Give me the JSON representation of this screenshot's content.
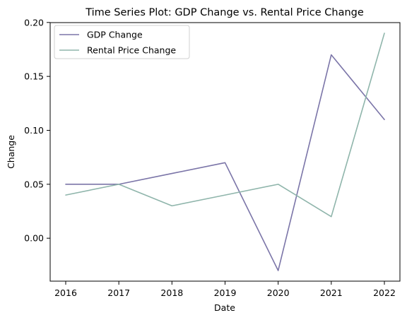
{
  "chart_data": {
    "type": "line",
    "title": "Time Series Plot: GDP Change vs. Rental Price Change",
    "xlabel": "Date",
    "ylabel": "Change",
    "x": [
      "2016",
      "2017",
      "2018",
      "2019",
      "2020",
      "2021",
      "2022"
    ],
    "yticks": [
      "0.00",
      "0.05",
      "0.10",
      "0.15",
      "0.20"
    ],
    "ylim": [
      -0.03,
      0.19
    ],
    "grid": false,
    "legend_position": "top-left",
    "series": [
      {
        "name": "GDP Change",
        "color": "#7b75a8",
        "values": [
          0.05,
          0.05,
          0.06,
          0.07,
          -0.03,
          0.17,
          0.11
        ]
      },
      {
        "name": "Rental Price Change",
        "color": "#8fb5ab",
        "values": [
          0.04,
          0.05,
          0.03,
          0.04,
          0.05,
          0.02,
          0.19
        ]
      }
    ]
  }
}
